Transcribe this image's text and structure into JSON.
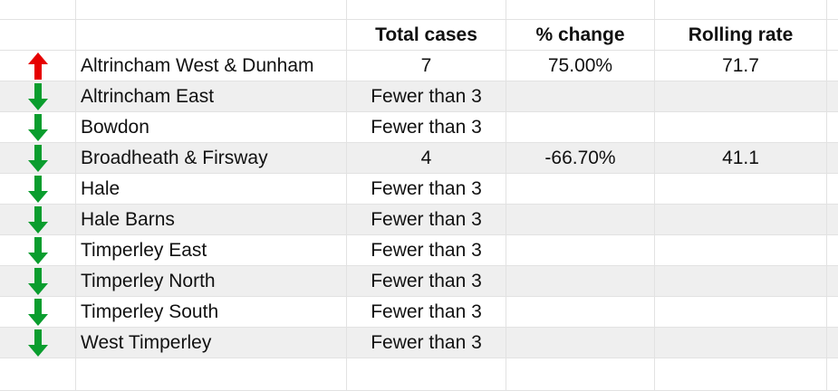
{
  "colors": {
    "up": "#e60000",
    "down": "#0a9d2e",
    "shaded_row": "#efefef",
    "grid": "#e2e2e2"
  },
  "header": {
    "total_cases": "Total cases",
    "pct_change": "% change",
    "rolling_rate": "Rolling rate"
  },
  "rows": [
    {
      "trend": "up-arrow-icon",
      "ward": "Altrincham West & Dunham",
      "total_cases": "7",
      "pct_change": "75.00%",
      "rolling_rate": "71.7"
    },
    {
      "trend": "down-arrow-icon",
      "ward": "Altrincham East",
      "total_cases": "Fewer than 3",
      "pct_change": "",
      "rolling_rate": ""
    },
    {
      "trend": "down-arrow-icon",
      "ward": "Bowdon",
      "total_cases": "Fewer than 3",
      "pct_change": "",
      "rolling_rate": ""
    },
    {
      "trend": "down-arrow-icon",
      "ward": "Broadheath & Firsway",
      "total_cases": "4",
      "pct_change": "-66.70%",
      "rolling_rate": "41.1"
    },
    {
      "trend": "down-arrow-icon",
      "ward": "Hale",
      "total_cases": "Fewer than 3",
      "pct_change": "",
      "rolling_rate": ""
    },
    {
      "trend": "down-arrow-icon",
      "ward": "Hale Barns",
      "total_cases": "Fewer than 3",
      "pct_change": "",
      "rolling_rate": ""
    },
    {
      "trend": "down-arrow-icon",
      "ward": "Timperley East",
      "total_cases": "Fewer than 3",
      "pct_change": "",
      "rolling_rate": ""
    },
    {
      "trend": "down-arrow-icon",
      "ward": "Timperley North",
      "total_cases": "Fewer than 3",
      "pct_change": "",
      "rolling_rate": ""
    },
    {
      "trend": "down-arrow-icon",
      "ward": "Timperley South",
      "total_cases": "Fewer than 3",
      "pct_change": "",
      "rolling_rate": ""
    },
    {
      "trend": "down-arrow-icon",
      "ward": "West Timperley",
      "total_cases": "Fewer than 3",
      "pct_change": "",
      "rolling_rate": ""
    }
  ]
}
